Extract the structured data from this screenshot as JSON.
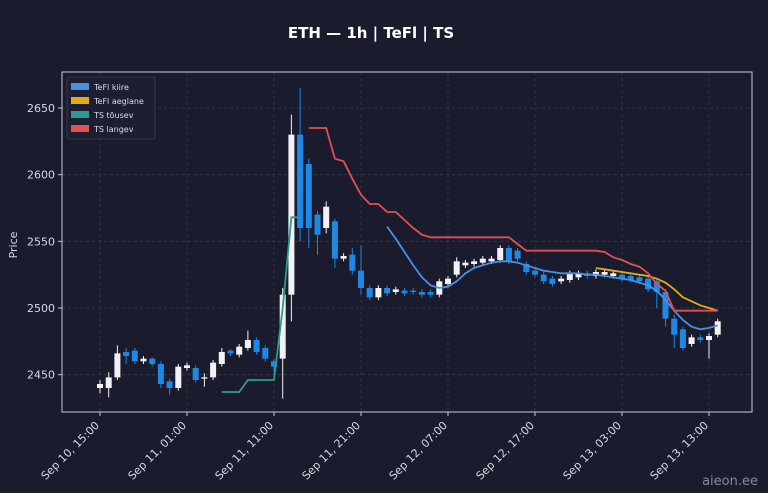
{
  "chart_data": {
    "type": "candlestick",
    "title": "ETH — 1h  |  TeFl  |  TS",
    "y_label": "Price",
    "watermark": "aieon.ee",
    "categories": [
      "Sep 10, 15:00",
      null,
      null,
      null,
      null,
      null,
      null,
      null,
      null,
      null,
      "Sep 11, 01:00",
      null,
      null,
      null,
      null,
      null,
      null,
      null,
      null,
      null,
      "Sep 11, 11:00",
      null,
      null,
      null,
      null,
      null,
      null,
      null,
      null,
      null,
      "Sep 11, 21:00",
      null,
      null,
      null,
      null,
      null,
      null,
      null,
      null,
      null,
      "Sep 12, 07:00",
      null,
      null,
      null,
      null,
      null,
      null,
      null,
      null,
      null,
      "Sep 12, 17:00",
      null,
      null,
      null,
      null,
      null,
      null,
      null,
      null,
      null,
      "Sep 13, 03:00",
      null,
      null,
      null,
      null,
      null,
      null,
      null,
      null,
      null,
      "Sep 13, 13:00",
      null
    ],
    "open": [
      2440,
      2440,
      2448,
      2467,
      2468,
      2460,
      2462,
      2458,
      2445,
      2440,
      2455,
      2455,
      2447,
      2448,
      2458,
      2468,
      2465,
      2470,
      2476,
      2470,
      2460,
      2462,
      2510,
      2630,
      2608,
      2570,
      2560,
      2565,
      2537,
      2540,
      2528,
      2515,
      2508,
      2515,
      2512,
      2513,
      2513,
      2512,
      2512,
      2510,
      2518,
      2525,
      2532,
      2533,
      2534,
      2535,
      2536,
      2545,
      2543,
      2533,
      2528,
      2525,
      2522,
      2520,
      2521,
      2523,
      2526,
      2524,
      2525,
      2524,
      2525,
      2524,
      2523,
      2522,
      2520,
      2512,
      2492,
      2484,
      2473,
      2478,
      2476,
      2480
    ],
    "high": [
      2446,
      2452,
      2472,
      2470,
      2470,
      2464,
      2463,
      2460,
      2447,
      2458,
      2459,
      2457,
      2451,
      2461,
      2470,
      2469,
      2473,
      2483,
      2478,
      2472,
      2462,
      2515,
      2645,
      2665,
      2612,
      2573,
      2580,
      2567,
      2541,
      2545,
      2547,
      2517,
      2517,
      2517,
      2516,
      2515,
      2515,
      2514,
      2514,
      2522,
      2524,
      2538,
      2536,
      2537,
      2539,
      2539,
      2547,
      2547,
      2545,
      2535,
      2530,
      2527,
      2524,
      2524,
      2528,
      2528,
      2528,
      2529,
      2529,
      2528,
      2527,
      2526,
      2525,
      2524,
      2522,
      2514,
      2495,
      2486,
      2480,
      2480,
      2481,
      2492
    ],
    "low": [
      2436,
      2433,
      2446,
      2458,
      2458,
      2458,
      2456,
      2440,
      2435,
      2438,
      2453,
      2444,
      2441,
      2446,
      2456,
      2464,
      2463,
      2468,
      2465,
      2460,
      2452,
      2432,
      2490,
      2550,
      2545,
      2540,
      2556,
      2530,
      2535,
      2525,
      2510,
      2506,
      2506,
      2509,
      2510,
      2509,
      2510,
      2508,
      2508,
      2508,
      2516,
      2523,
      2530,
      2531,
      2532,
      2533,
      2534,
      2533,
      2535,
      2525,
      2523,
      2518,
      2516,
      2518,
      2519,
      2521,
      2522,
      2522,
      2523,
      2522,
      2520,
      2519,
      2518,
      2512,
      2500,
      2486,
      2470,
      2468,
      2471,
      2474,
      2462,
      2478
    ],
    "close": [
      2443,
      2448,
      2466,
      2464,
      2460,
      2462,
      2458,
      2443,
      2440,
      2456,
      2457,
      2446,
      2448,
      2459,
      2467,
      2466,
      2471,
      2476,
      2467,
      2462,
      2456,
      2510,
      2630,
      2560,
      2560,
      2555,
      2576,
      2537,
      2539,
      2528,
      2515,
      2508,
      2515,
      2511,
      2514,
      2511,
      2512,
      2510,
      2510,
      2520,
      2522,
      2535,
      2534,
      2535,
      2537,
      2537,
      2545,
      2535,
      2537,
      2527,
      2525,
      2520,
      2518,
      2522,
      2526,
      2526,
      2524,
      2527,
      2527,
      2526,
      2522,
      2521,
      2520,
      2514,
      2512,
      2492,
      2480,
      2470,
      2478,
      2476,
      2479,
      2490
    ],
    "up_color": "#f2f2f2",
    "down_color": "#1e88e5",
    "series": [
      {
        "name": "TeFl kiire",
        "color": "#4a90e2",
        "values": [
          null,
          null,
          null,
          null,
          null,
          null,
          null,
          null,
          null,
          null,
          null,
          null,
          null,
          null,
          null,
          null,
          null,
          null,
          null,
          null,
          null,
          null,
          null,
          null,
          null,
          null,
          null,
          null,
          null,
          null,
          null,
          null,
          null,
          2561,
          2552,
          2542,
          2532,
          2523,
          2517,
          2515,
          2516,
          2520,
          2526,
          2530,
          2532,
          2534,
          2535,
          2535,
          2534,
          2532,
          2530,
          2528,
          2527,
          2526,
          2526,
          2526,
          2525,
          2525,
          2524,
          2523,
          2522,
          2521,
          2519,
          2517,
          2513,
          2506,
          2498,
          2491,
          2486,
          2484,
          2485,
          2487
        ]
      },
      {
        "name": "TeFl aeglane",
        "color": "#e6a817",
        "values": [
          null,
          null,
          null,
          null,
          null,
          null,
          null,
          null,
          null,
          null,
          null,
          null,
          null,
          null,
          null,
          null,
          null,
          null,
          null,
          null,
          null,
          null,
          null,
          null,
          null,
          null,
          null,
          null,
          null,
          null,
          null,
          null,
          null,
          null,
          null,
          null,
          null,
          null,
          null,
          null,
          null,
          null,
          null,
          null,
          null,
          null,
          null,
          null,
          null,
          null,
          null,
          null,
          null,
          null,
          null,
          null,
          null,
          2530,
          2529,
          2528,
          2527,
          2526,
          2525,
          2524,
          2522,
          2519,
          2514,
          2508,
          2505,
          2502,
          2500,
          2498
        ]
      },
      {
        "name": "TS tõusev",
        "color": "#2a9d8f",
        "values": [
          null,
          null,
          null,
          null,
          null,
          null,
          null,
          null,
          null,
          null,
          null,
          null,
          null,
          null,
          2437,
          2437,
          2437,
          2446,
          2446,
          2446,
          2446,
          2500,
          2568,
          2568,
          null,
          null,
          null,
          null,
          null,
          null,
          null,
          null,
          null,
          null,
          null,
          null,
          null,
          null,
          null,
          null,
          null,
          null,
          null,
          null,
          null,
          null,
          null,
          null,
          null,
          null,
          null,
          null,
          null,
          null,
          null,
          null,
          null,
          null,
          null,
          null,
          null,
          null,
          null,
          null,
          null,
          null,
          null,
          null,
          null,
          null,
          null,
          null
        ]
      },
      {
        "name": "TS langev",
        "color": "#e05252",
        "values": [
          null,
          null,
          null,
          null,
          null,
          null,
          null,
          null,
          null,
          null,
          null,
          null,
          null,
          null,
          null,
          null,
          null,
          null,
          null,
          null,
          null,
          null,
          null,
          null,
          2635,
          2635,
          2635,
          2612,
          2610,
          2597,
          2585,
          2578,
          2578,
          2572,
          2572,
          2566,
          2560,
          2555,
          2553,
          2553,
          2553,
          2553,
          2553,
          2553,
          2553,
          2553,
          2553,
          2553,
          2548,
          2543,
          2543,
          2543,
          2543,
          2543,
          2543,
          2543,
          2543,
          2543,
          2542,
          2538,
          2536,
          2533,
          2531,
          2526,
          2518,
          2513,
          2498,
          2498,
          2498,
          2498,
          2498,
          2498
        ]
      }
    ],
    "ylim": [
      2422,
      2677
    ],
    "yticks": [
      2450,
      2500,
      2550,
      2600,
      2650
    ],
    "grid": true,
    "legend": "upper left"
  }
}
